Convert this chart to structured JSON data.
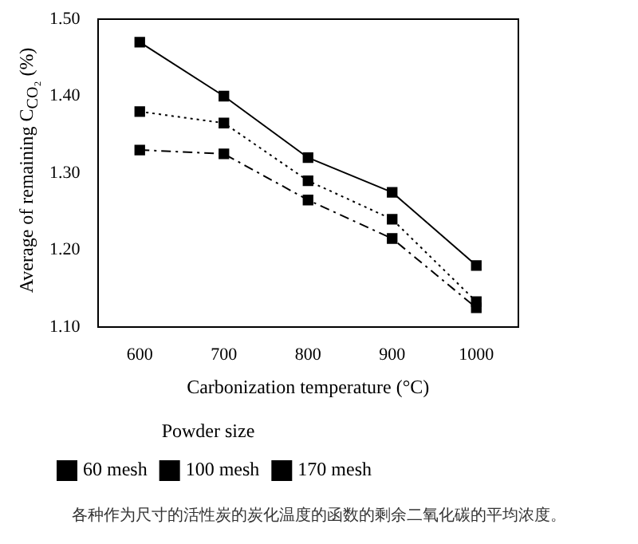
{
  "chart_data": {
    "type": "line",
    "xlabel": "Carbonization temperature (°C)",
    "ylabel": "Average of remaining C$_{CO₂}$ (%)",
    "legend_title": "Powder size",
    "x": [
      600,
      700,
      800,
      900,
      1000
    ],
    "series": [
      {
        "name": "60 mesh",
        "color": "#000000",
        "line_style": "solid",
        "values": [
          1.47,
          1.4,
          1.32,
          1.275,
          1.18
        ]
      },
      {
        "name": "100 mesh",
        "color": "#000000",
        "line_style": "dotted",
        "values": [
          1.38,
          1.365,
          1.29,
          1.24,
          1.133
        ]
      },
      {
        "name": "170 mesh",
        "color": "#000000",
        "line_style": "dashed",
        "values": [
          1.33,
          1.325,
          1.265,
          1.215,
          1.125
        ]
      }
    ],
    "xlim": [
      550,
      1050
    ],
    "xticks": [
      600,
      700,
      800,
      900,
      1000
    ],
    "ylim": [
      1.1,
      1.5
    ],
    "yticks": [
      {
        "value": 1.1,
        "label": "1.10"
      },
      {
        "value": 1.2,
        "label": "1.20"
      },
      {
        "value": 1.3,
        "label": "1.30"
      },
      {
        "value": 1.4,
        "label": "1.40"
      },
      {
        "value": 1.5,
        "label": "1.50"
      }
    ],
    "grid": false,
    "legend": "bottom",
    "marker": "square",
    "annotations": [
      "各种作为尺寸的活性炭的炭化温度的函数的剩余二氧化碳的平均浓度。"
    ]
  }
}
